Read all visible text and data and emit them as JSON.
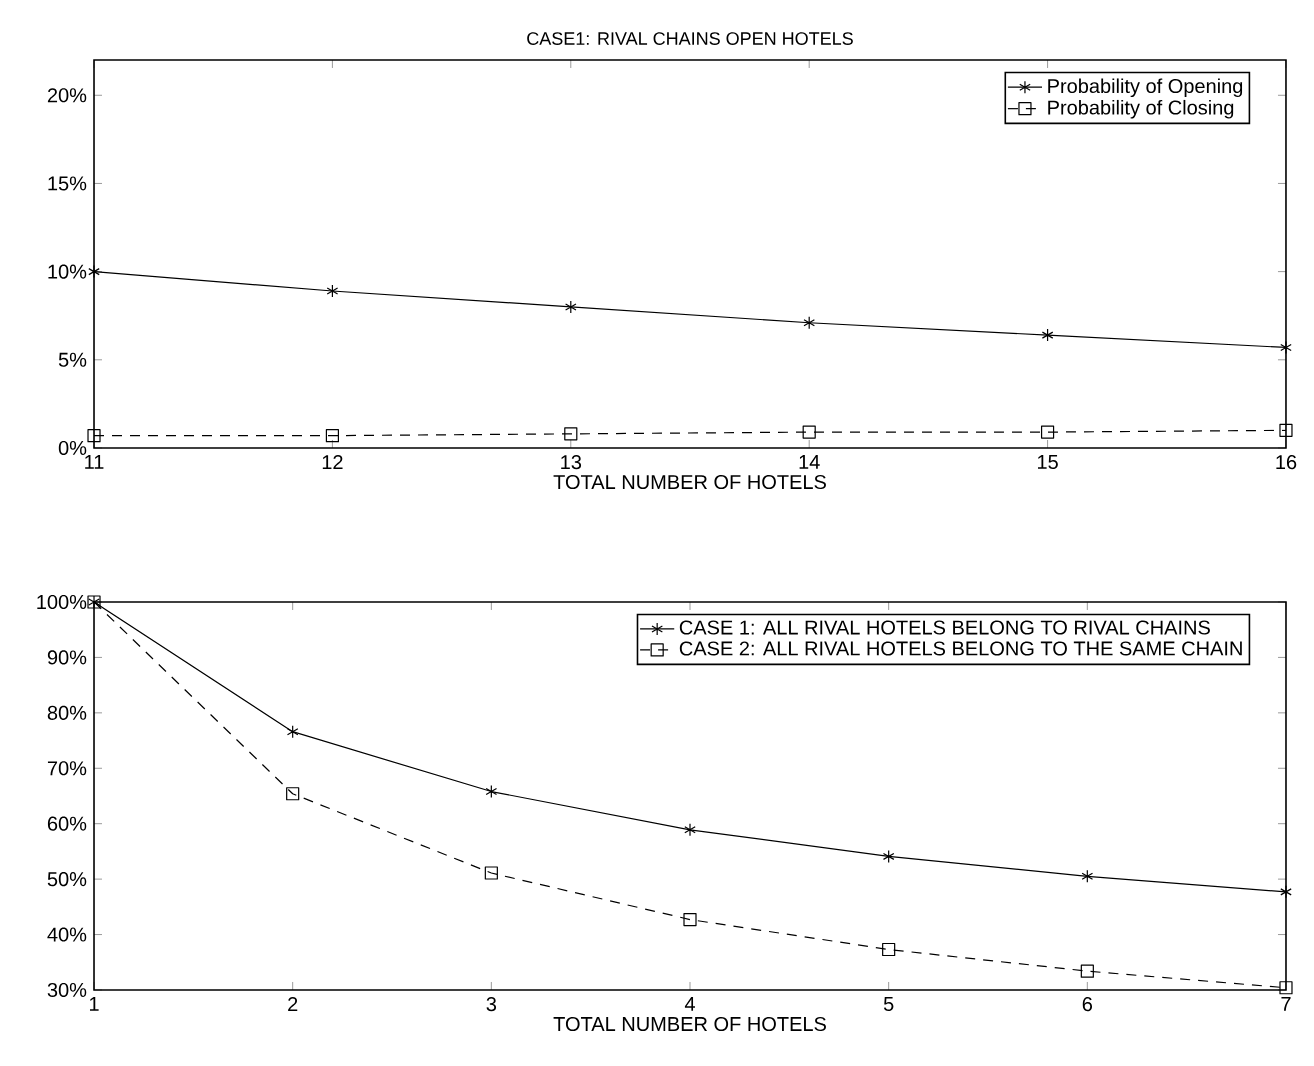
{
  "chart_data": [
    {
      "type": "line",
      "title": "CASE1: RIVAL CHAINS OPEN HOTELS",
      "xlabel": "TOTAL NUMBER OF HOTELS",
      "x": [
        11,
        12,
        13,
        14,
        15,
        16
      ],
      "xlim": [
        11,
        16
      ],
      "xticks": [
        11,
        12,
        13,
        14,
        15,
        16
      ],
      "ylim": [
        0,
        22
      ],
      "yticks": [
        {
          "value": 0,
          "label": "0%"
        },
        {
          "value": 5,
          "label": "5%"
        },
        {
          "value": 10,
          "label": "10%"
        },
        {
          "value": 15,
          "label": "15%"
        },
        {
          "value": 20,
          "label": "20%"
        }
      ],
      "legend": "top right",
      "grid": false,
      "series": [
        {
          "name": "Probability of Opening",
          "color": "#000000",
          "marker": "cross",
          "line_style": "solid",
          "values": [
            10,
            8.9,
            8.0,
            7.1,
            6.4,
            5.7
          ]
        },
        {
          "name": "Probability of Closing",
          "color": "#000000",
          "marker": "square",
          "line_style": "dashed",
          "values": [
            0.7,
            0.7,
            0.8,
            0.9,
            0.9,
            1.0
          ]
        }
      ]
    },
    {
      "type": "line",
      "xlabel": "TOTAL NUMBER OF HOTELS",
      "x": [
        1,
        2,
        3,
        4,
        5,
        6,
        7
      ],
      "xlim": [
        1,
        7
      ],
      "xticks": [
        1,
        2,
        3,
        4,
        5,
        6,
        7
      ],
      "ylim": [
        30,
        100
      ],
      "yticks": [
        {
          "value": 30,
          "label": "30%"
        },
        {
          "value": 40,
          "label": "40%"
        },
        {
          "value": 50,
          "label": "50%"
        },
        {
          "value": 60,
          "label": "60%"
        },
        {
          "value": 70,
          "label": "70%"
        },
        {
          "value": 80,
          "label": "80%"
        },
        {
          "value": 90,
          "label": "90%"
        },
        {
          "value": 100,
          "label": "100%"
        }
      ],
      "legend": "top right",
      "grid": false,
      "series": [
        {
          "name": "CASE 1: ALL RIVAL HOTELS BELONG TO RIVAL CHAINS",
          "color": "#000000",
          "marker": "cross",
          "line_style": "solid",
          "values": [
            100,
            76.6,
            65.8,
            58.9,
            54.1,
            50.5,
            47.7
          ]
        },
        {
          "name": "CASE 2: ALL RIVAL HOTELS BELONG TO THE SAME CHAIN",
          "color": "#000000",
          "marker": "square",
          "line_style": "dashed",
          "values": [
            100,
            65.4,
            51.1,
            42.7,
            37.3,
            33.4,
            30.4
          ]
        }
      ]
    }
  ]
}
